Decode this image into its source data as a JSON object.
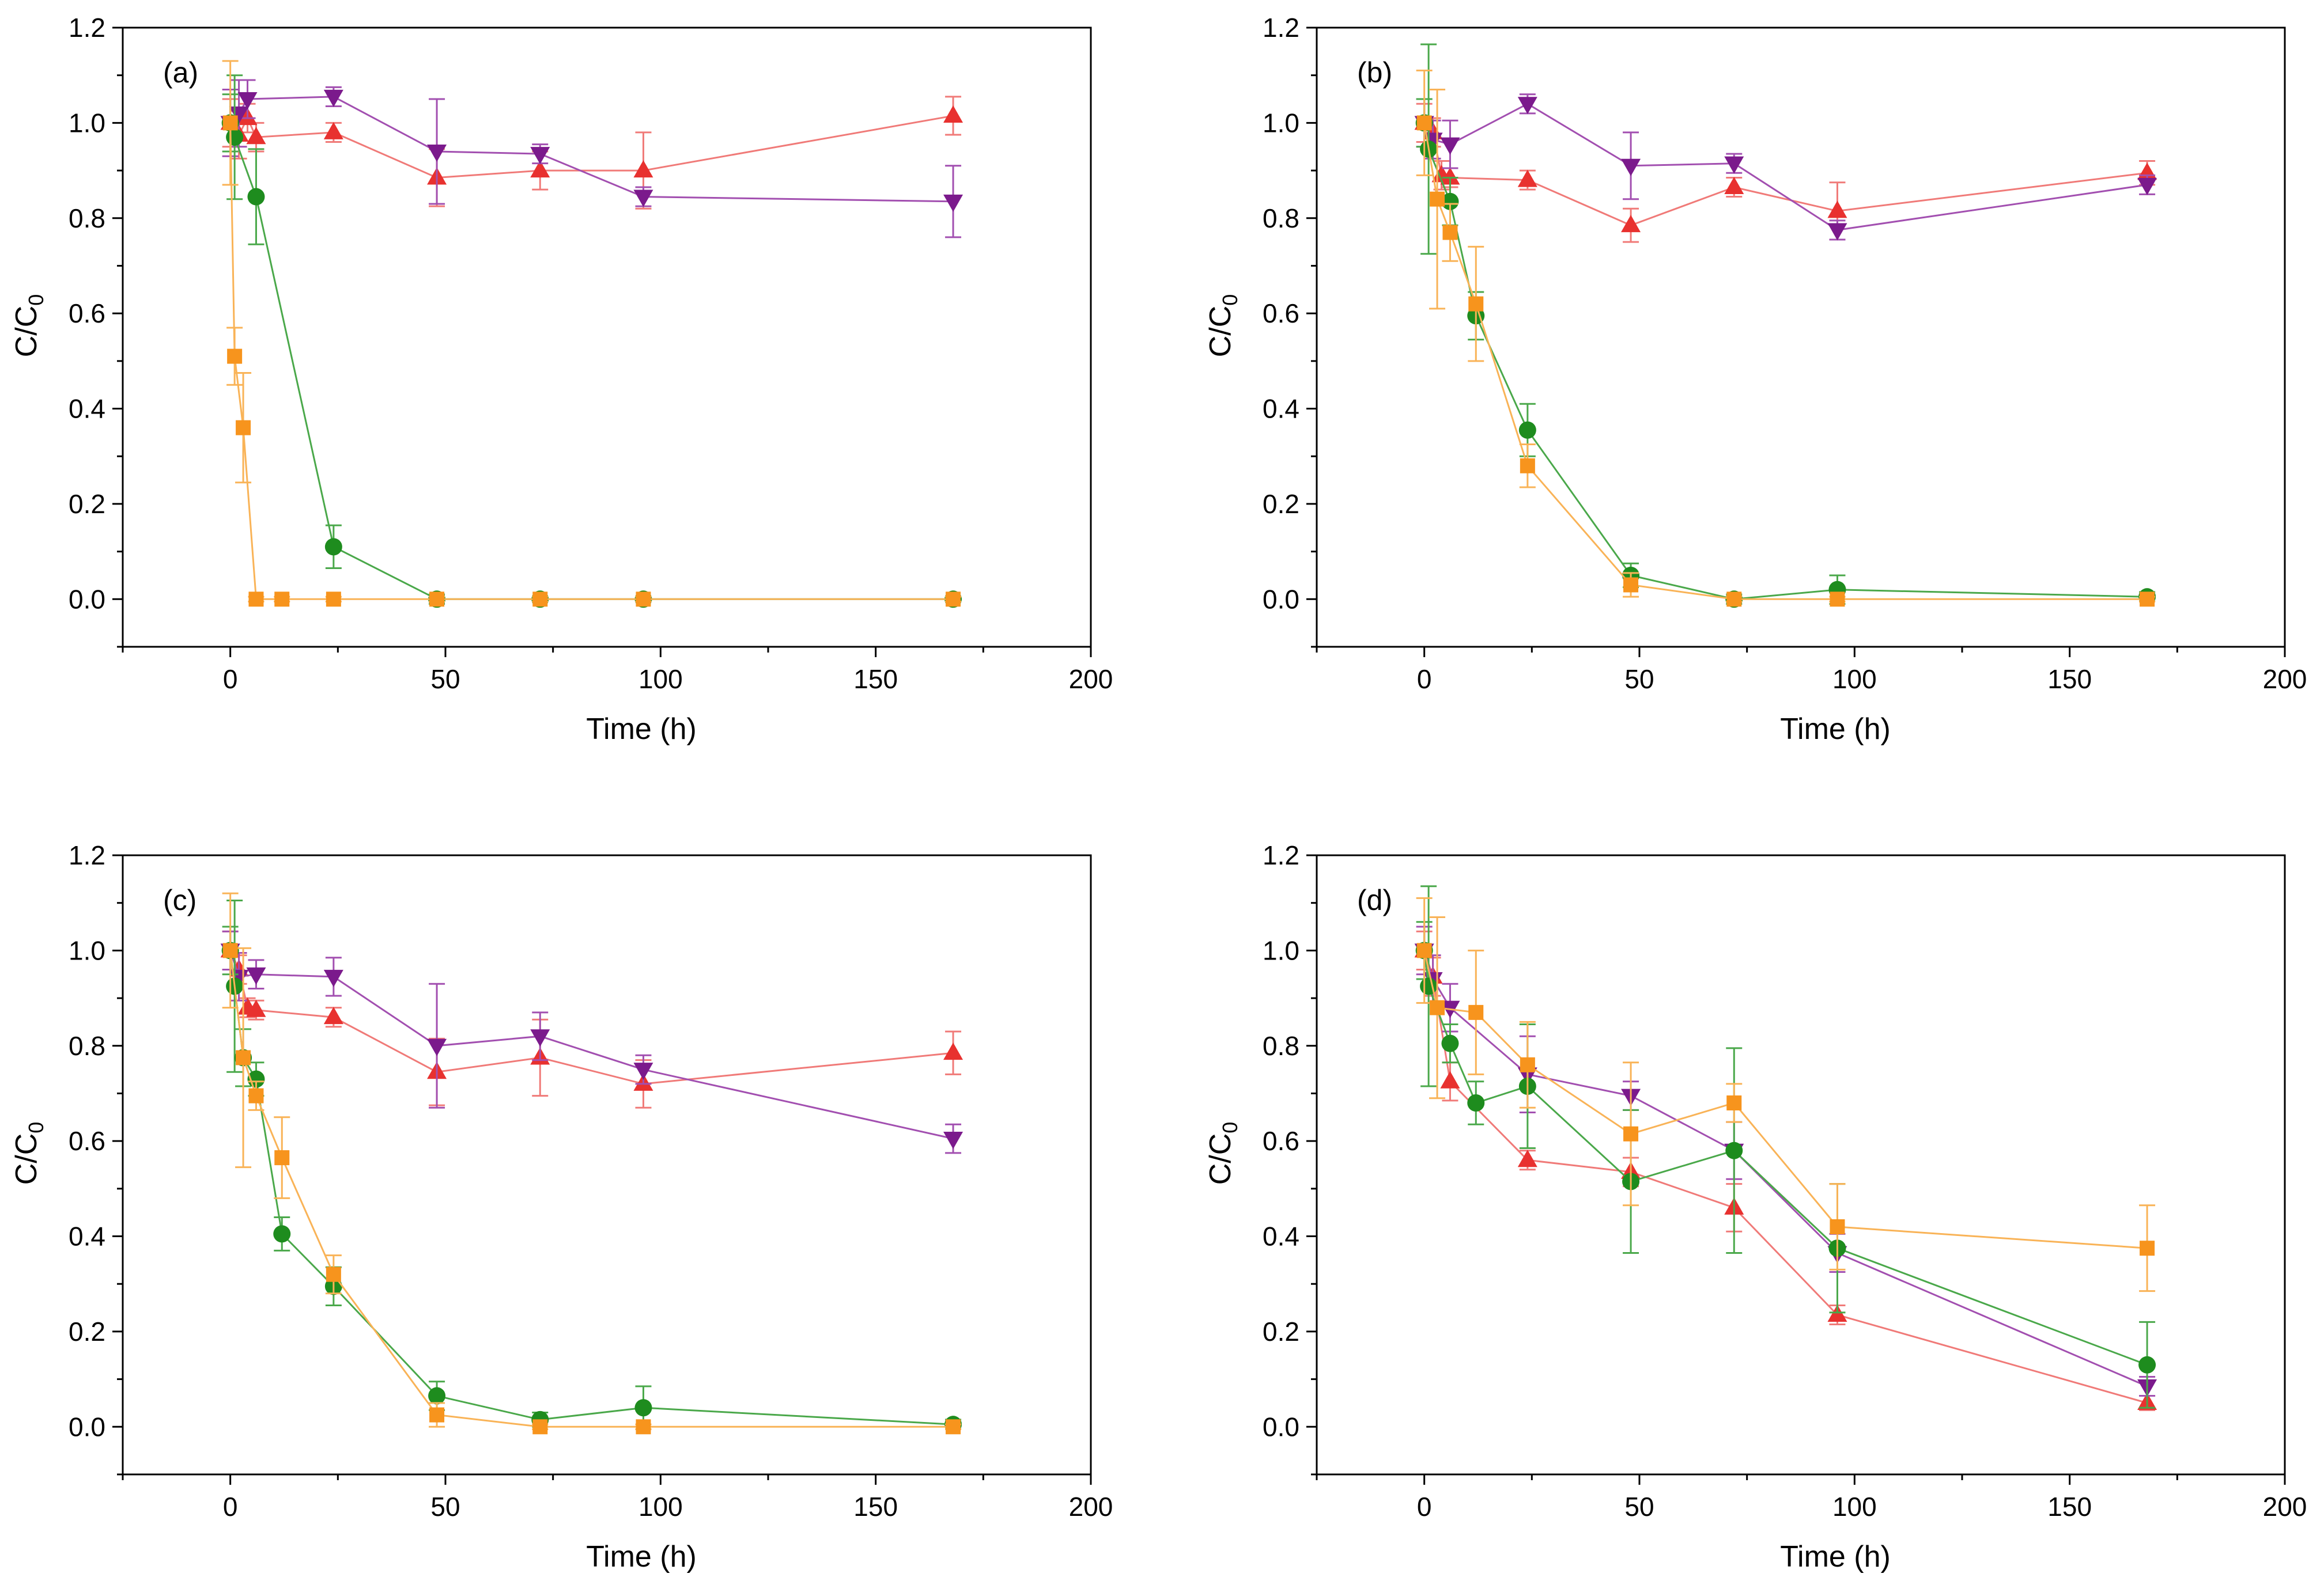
{
  "figure": {
    "background": "#ffffff",
    "series_styles": [
      {
        "key": "red",
        "marker": "triangle-up",
        "color": "#e8312f",
        "line_color": "#f07a78"
      },
      {
        "key": "purple",
        "marker": "triangle-down",
        "color": "#7b1a8c",
        "line_color": "#a24fb0"
      },
      {
        "key": "green",
        "marker": "circle",
        "color": "#1e8c1e",
        "line_color": "#4aa84a"
      },
      {
        "key": "orange",
        "marker": "square",
        "color": "#f7941d",
        "line_color": "#f9b357"
      }
    ]
  },
  "chart_data": [
    {
      "type": "line",
      "panel_label": "(a)",
      "xlabel": "Time (h)",
      "ylabel_main": "C/C",
      "ylabel_sub": "0",
      "xlim": [
        -25,
        200
      ],
      "ylim": [
        -0.1,
        1.2
      ],
      "xticks": [
        0,
        50,
        100,
        150,
        200
      ],
      "xtick_labels": [
        "0",
        "50",
        "100",
        "150",
        "200"
      ],
      "yticks": [
        0.0,
        0.2,
        0.4,
        0.6,
        0.8,
        1.0,
        1.2
      ],
      "ytick_labels": [
        "0.0",
        "0.2",
        "0.4",
        "0.6",
        "0.8",
        "1.0",
        "1.2"
      ],
      "series": [
        {
          "key": "red",
          "x": [
            0,
            2,
            4,
            6,
            24,
            48,
            72,
            96,
            168
          ],
          "y": [
            1.0,
            0.975,
            1.01,
            0.97,
            0.98,
            0.885,
            0.9,
            0.9,
            1.015
          ],
          "err": [
            0.05,
            0.05,
            0.03,
            0.03,
            0.02,
            0.06,
            0.04,
            0.08,
            0.04
          ]
        },
        {
          "key": "purple",
          "x": [
            0,
            2,
            4,
            24,
            48,
            72,
            96,
            168
          ],
          "y": [
            1.0,
            1.02,
            1.05,
            1.055,
            0.94,
            0.935,
            0.845,
            0.835
          ],
          "err": [
            0.07,
            0.07,
            0.04,
            0.02,
            0.11,
            0.02,
            0.02,
            0.075
          ]
        },
        {
          "key": "green",
          "x": [
            0,
            1,
            6,
            24,
            48,
            72,
            96,
            168
          ],
          "y": [
            1.0,
            0.97,
            0.845,
            0.11,
            0.0,
            0.0,
            0.0,
            0.0
          ],
          "err": [
            0.06,
            0.13,
            0.1,
            0.045,
            0.01,
            0.005,
            0.005,
            0.005
          ]
        },
        {
          "key": "orange",
          "x": [
            0,
            1,
            3,
            6,
            12,
            24,
            48,
            72,
            96,
            168
          ],
          "y": [
            1.0,
            0.51,
            0.36,
            0.0,
            0.0,
            0.0,
            0.0,
            0.0,
            0.0,
            0.0
          ],
          "err": [
            0.13,
            0.06,
            0.115,
            0.005,
            0.005,
            0.005,
            0.005,
            0.005,
            0.005,
            0.005
          ]
        }
      ]
    },
    {
      "type": "line",
      "panel_label": "(b)",
      "xlabel": "Time (h)",
      "ylabel_main": "C/C",
      "ylabel_sub": "0",
      "xlim": [
        -25,
        200
      ],
      "ylim": [
        -0.1,
        1.2
      ],
      "xticks": [
        0,
        50,
        100,
        150,
        200
      ],
      "xtick_labels": [
        "0",
        "50",
        "100",
        "150",
        "200"
      ],
      "yticks": [
        0.0,
        0.2,
        0.4,
        0.6,
        0.8,
        1.0,
        1.2
      ],
      "ytick_labels": [
        "0.0",
        "0.2",
        "0.4",
        "0.6",
        "0.8",
        "1.0",
        "1.2"
      ],
      "series": [
        {
          "key": "red",
          "x": [
            0,
            2,
            4,
            6,
            24,
            48,
            72,
            96,
            168
          ],
          "y": [
            1.0,
            0.98,
            0.89,
            0.885,
            0.88,
            0.785,
            0.865,
            0.815,
            0.895
          ],
          "err": [
            0.04,
            0.03,
            0.03,
            0.02,
            0.02,
            0.035,
            0.02,
            0.06,
            0.025
          ]
        },
        {
          "key": "purple",
          "x": [
            0,
            2,
            6,
            24,
            48,
            72,
            96,
            168
          ],
          "y": [
            1.0,
            0.965,
            0.955,
            1.04,
            0.91,
            0.915,
            0.775,
            0.87
          ],
          "err": [
            0.05,
            0.04,
            0.05,
            0.02,
            0.07,
            0.02,
            0.02,
            0.02
          ]
        },
        {
          "key": "green",
          "x": [
            0,
            1,
            6,
            12,
            24,
            48,
            72,
            96,
            168
          ],
          "y": [
            1.0,
            0.945,
            0.835,
            0.595,
            0.355,
            0.05,
            0.0,
            0.02,
            0.005
          ],
          "err": [
            0.05,
            0.22,
            0.05,
            0.05,
            0.055,
            0.025,
            0.01,
            0.03,
            0.01
          ]
        },
        {
          "key": "orange",
          "x": [
            0,
            3,
            6,
            12,
            24,
            48,
            72,
            96,
            168
          ],
          "y": [
            1.0,
            0.84,
            0.77,
            0.62,
            0.28,
            0.03,
            0.0,
            0.0,
            0.0
          ],
          "err": [
            0.11,
            0.23,
            0.06,
            0.12,
            0.045,
            0.025,
            0.005,
            0.005,
            0.005
          ]
        }
      ]
    },
    {
      "type": "line",
      "panel_label": "(c)",
      "xlabel": "Time (h)",
      "ylabel_main": "C/C",
      "ylabel_sub": "0",
      "xlim": [
        -25,
        200
      ],
      "ylim": [
        -0.1,
        1.2
      ],
      "xticks": [
        0,
        50,
        100,
        150,
        200
      ],
      "xtick_labels": [
        "0",
        "50",
        "100",
        "150",
        "200"
      ],
      "yticks": [
        0.0,
        0.2,
        0.4,
        0.6,
        0.8,
        1.0,
        1.2
      ],
      "ytick_labels": [
        "0.0",
        "0.2",
        "0.4",
        "0.6",
        "0.8",
        "1.0",
        "1.2"
      ],
      "series": [
        {
          "key": "red",
          "x": [
            0,
            2,
            4,
            6,
            24,
            48,
            72,
            96,
            168
          ],
          "y": [
            1.0,
            0.96,
            0.88,
            0.875,
            0.86,
            0.745,
            0.775,
            0.72,
            0.785
          ],
          "err": [
            0.04,
            0.03,
            0.02,
            0.02,
            0.02,
            0.07,
            0.08,
            0.05,
            0.045
          ]
        },
        {
          "key": "purple",
          "x": [
            0,
            2,
            6,
            24,
            48,
            72,
            96,
            168
          ],
          "y": [
            1.0,
            0.945,
            0.95,
            0.945,
            0.8,
            0.82,
            0.75,
            0.605
          ],
          "err": [
            0.04,
            0.05,
            0.03,
            0.04,
            0.13,
            0.05,
            0.03,
            0.03
          ]
        },
        {
          "key": "green",
          "x": [
            0,
            1,
            3,
            6,
            12,
            24,
            48,
            72,
            96,
            168
          ],
          "y": [
            1.0,
            0.925,
            0.775,
            0.73,
            0.405,
            0.295,
            0.065,
            0.015,
            0.04,
            0.005
          ],
          "err": [
            0.05,
            0.18,
            0.06,
            0.035,
            0.035,
            0.04,
            0.03,
            0.015,
            0.045,
            0.01
          ]
        },
        {
          "key": "orange",
          "x": [
            0,
            3,
            6,
            12,
            24,
            48,
            72,
            96,
            168
          ],
          "y": [
            1.0,
            0.775,
            0.695,
            0.565,
            0.32,
            0.025,
            0.0,
            0.0,
            0.0
          ],
          "err": [
            0.12,
            0.23,
            0.03,
            0.085,
            0.04,
            0.025,
            0.005,
            0.005,
            0.005
          ]
        }
      ]
    },
    {
      "type": "line",
      "panel_label": "(d)",
      "xlabel": "Time (h)",
      "ylabel_main": "C/C",
      "ylabel_sub": "0",
      "xlim": [
        -25,
        200
      ],
      "ylim": [
        -0.1,
        1.2
      ],
      "xticks": [
        0,
        50,
        100,
        150,
        200
      ],
      "xtick_labels": [
        "0",
        "50",
        "100",
        "150",
        "200"
      ],
      "yticks": [
        0.0,
        0.2,
        0.4,
        0.6,
        0.8,
        1.0,
        1.2
      ],
      "ytick_labels": [
        "0.0",
        "0.2",
        "0.4",
        "0.6",
        "0.8",
        "1.0",
        "1.2"
      ],
      "series": [
        {
          "key": "red",
          "x": [
            0,
            2,
            6,
            24,
            48,
            72,
            96,
            168
          ],
          "y": [
            1.0,
            0.945,
            0.725,
            0.56,
            0.535,
            0.46,
            0.235,
            0.05
          ],
          "err": [
            0.04,
            0.04,
            0.04,
            0.02,
            0.03,
            0.05,
            0.02,
            0.015
          ]
        },
        {
          "key": "purple",
          "x": [
            0,
            2,
            6,
            24,
            48,
            72,
            96,
            168
          ],
          "y": [
            1.0,
            0.94,
            0.88,
            0.74,
            0.695,
            0.58,
            0.365,
            0.085
          ],
          "err": [
            0.05,
            0.05,
            0.05,
            0.08,
            0.03,
            0.06,
            0.04,
            0.02
          ]
        },
        {
          "key": "green",
          "x": [
            0,
            1,
            6,
            12,
            24,
            48,
            72,
            96,
            168
          ],
          "y": [
            1.0,
            0.925,
            0.805,
            0.68,
            0.715,
            0.515,
            0.58,
            0.375,
            0.13
          ],
          "err": [
            0.06,
            0.21,
            0.04,
            0.045,
            0.13,
            0.15,
            0.215,
            0.135,
            0.09
          ]
        },
        {
          "key": "orange",
          "x": [
            0,
            3,
            12,
            24,
            48,
            72,
            96,
            168
          ],
          "y": [
            1.0,
            0.88,
            0.87,
            0.76,
            0.615,
            0.68,
            0.42,
            0.375
          ],
          "err": [
            0.11,
            0.19,
            0.13,
            0.09,
            0.15,
            0.04,
            0.09,
            0.09
          ]
        }
      ]
    }
  ]
}
